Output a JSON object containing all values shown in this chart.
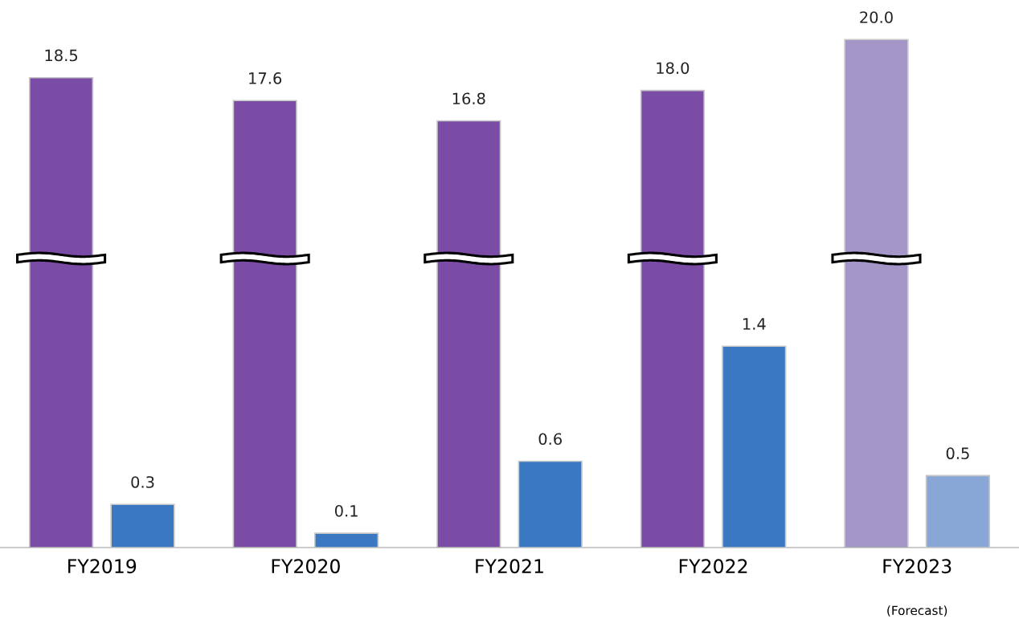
{
  "chart_data": {
    "type": "bar",
    "categories": [
      "FY2019",
      "FY2020",
      "FY2021",
      "FY2022",
      "FY2023"
    ],
    "series": [
      {
        "colors": [
          "#7a4ca6",
          "#7a4ca6",
          "#7a4ca6",
          "#7a4ca6",
          "#a596c8"
        ],
        "values": [
          18.5,
          17.6,
          16.8,
          18.0,
          20.0
        ],
        "value_labels": [
          "18.5",
          "17.6",
          "16.8",
          "18.0",
          "20.0"
        ]
      },
      {
        "axis": "y2",
        "colors": [
          "#3a78c2",
          "#3a78c2",
          "#3a78c2",
          "#3a78c2",
          "#88a6d6"
        ],
        "values": [
          0.3,
          0.1,
          0.6,
          1.4,
          0.5
        ],
        "value_labels": [
          "0.3",
          "0.1",
          "0.6",
          "1.4",
          "0.5"
        ]
      }
    ],
    "data_labels": true,
    "annotations": [
      "(Forecast)"
    ]
  }
}
